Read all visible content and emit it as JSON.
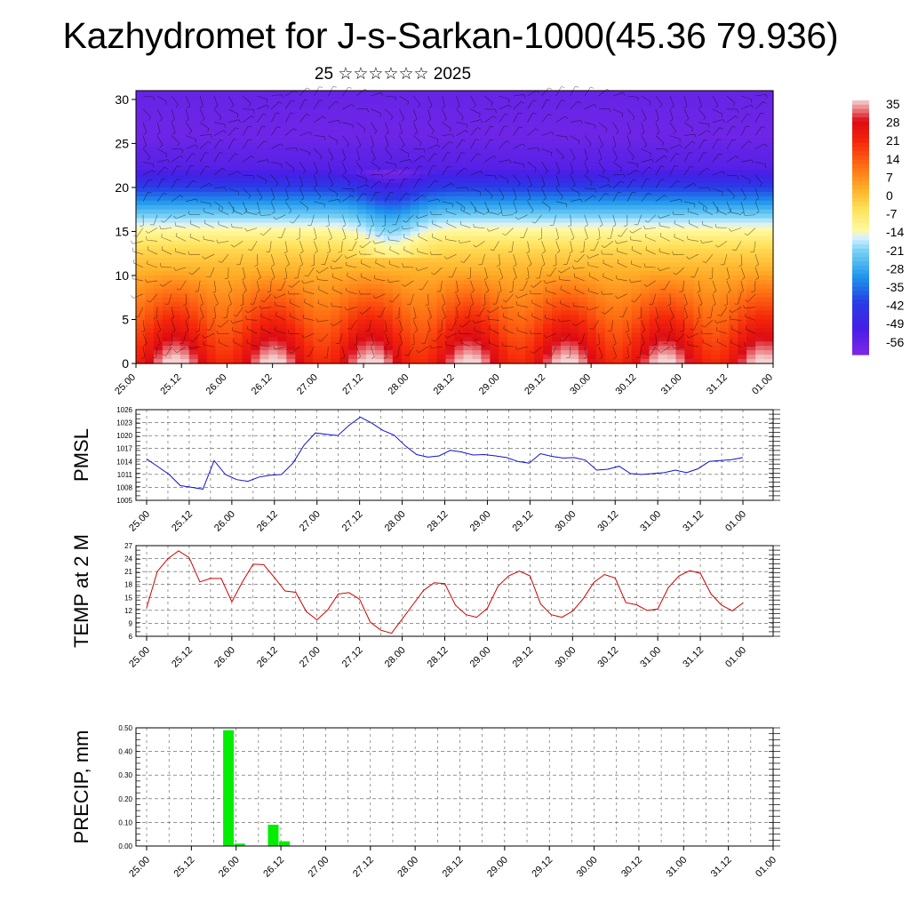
{
  "title": "Kazhydromet for J-s-Sarkan-1000(45.36 79.936)",
  "subtitle": "25 ☆☆☆☆☆☆ 2025",
  "time_ticks": [
    "25.00",
    "25.12",
    "26.00",
    "26.12",
    "27.00",
    "27.12",
    "28.00",
    "28.12",
    "29.00",
    "29.12",
    "30.00",
    "30.12",
    "31.00",
    "31.12",
    "01.00"
  ],
  "chart_data": [
    {
      "type": "heatmap",
      "title": "",
      "xlabel": "",
      "ylabel": "",
      "description_of_overlay": "wind barbs",
      "x_ticks": [
        "25.00",
        "25.12",
        "26.00",
        "26.12",
        "27.00",
        "27.12",
        "28.00",
        "28.12",
        "29.00",
        "29.12",
        "30.00",
        "30.12",
        "31.00",
        "31.12",
        "01.00"
      ],
      "y_ticks": [
        0,
        5,
        10,
        15,
        20,
        25,
        30
      ],
      "ylim": [
        0,
        31
      ],
      "colorbar_labels": [
        35,
        28,
        21,
        14,
        7,
        0,
        -7,
        -14,
        -21,
        -28,
        -35,
        -42,
        -49,
        -56
      ],
      "colorbar_range": [
        -60,
        38
      ]
    },
    {
      "type": "line",
      "ylabel": "PMSL",
      "ylim": [
        1005,
        1026
      ],
      "y_ticks": [
        1005,
        1008,
        1011,
        1014,
        1017,
        1020,
        1023,
        1026
      ],
      "x_ticks": [
        "25.00",
        "25.12",
        "26.00",
        "26.12",
        "27.00",
        "27.12",
        "28.00",
        "28.12",
        "29.00",
        "29.12",
        "30.00",
        "30.12",
        "31.00",
        "31.12",
        "01.00"
      ],
      "color": "#1010d0",
      "values": [
        1014.6,
        1012.8,
        1011.0,
        1008.4,
        1008.0,
        1007.6,
        1014.2,
        1011.0,
        1009.8,
        1009.4,
        1010.4,
        1010.8,
        1011.0,
        1013.6,
        1017.8,
        1020.6,
        1020.3,
        1020.0,
        1022.4,
        1024.3,
        1022.9,
        1021.2,
        1020.1,
        1017.6,
        1015.6,
        1015.0,
        1015.3,
        1016.6,
        1016.2,
        1015.5,
        1015.6,
        1015.3,
        1014.9,
        1014.0,
        1013.6,
        1015.8,
        1015.2,
        1014.8,
        1014.9,
        1014.3,
        1012.0,
        1012.2,
        1012.9,
        1011.2,
        1011.0,
        1011.2,
        1011.4,
        1012.0,
        1011.4,
        1012.3,
        1014.0,
        1014.2,
        1014.4,
        1014.9
      ]
    },
    {
      "type": "line",
      "ylabel": "TEMP at 2 M",
      "ylim": [
        6,
        27
      ],
      "y_ticks": [
        6,
        9,
        12,
        15,
        18,
        21,
        24,
        27
      ],
      "x_ticks": [
        "25.00",
        "25.12",
        "26.00",
        "26.12",
        "27.00",
        "27.12",
        "28.00",
        "28.12",
        "29.00",
        "29.12",
        "30.00",
        "30.12",
        "31.00",
        "31.12",
        "01.00"
      ],
      "color": "#d00000",
      "values": [
        12.6,
        21.0,
        24.0,
        25.8,
        24.2,
        18.6,
        19.4,
        19.4,
        14.0,
        18.6,
        22.7,
        22.6,
        19.6,
        16.5,
        16.2,
        11.7,
        9.8,
        12.1,
        15.8,
        16.1,
        14.6,
        9.3,
        7.4,
        6.7,
        10.0,
        13.3,
        16.6,
        18.4,
        18.2,
        13.2,
        11.0,
        10.4,
        12.5,
        17.6,
        20.0,
        21.1,
        20.0,
        13.5,
        11.0,
        10.4,
        11.8,
        14.7,
        18.5,
        20.3,
        19.5,
        13.8,
        13.3,
        12.0,
        12.3,
        17.3,
        20.0,
        21.2,
        20.6,
        15.8,
        13.2,
        11.9,
        13.7
      ]
    },
    {
      "type": "bar",
      "ylabel": "PRECIP, mm",
      "ylim": [
        0,
        0.5
      ],
      "y_ticks": [
        "0.00",
        "0.10",
        "0.20",
        "0.30",
        "0.40",
        "0.50"
      ],
      "x_ticks": [
        "25.00",
        "25.12",
        "26.00",
        "26.12",
        "27.00",
        "27.12",
        "28.00",
        "28.12",
        "29.00",
        "29.12",
        "30.00",
        "30.12",
        "31.00",
        "31.12",
        "01.00"
      ],
      "color": "#00ee00",
      "bars": [
        {
          "time": "25.21",
          "value": 0.49
        },
        {
          "time": "26.00",
          "value": 0.01
        },
        {
          "time": "26.09",
          "value": 0.09
        },
        {
          "time": "26.12",
          "value": 0.02
        }
      ]
    }
  ]
}
